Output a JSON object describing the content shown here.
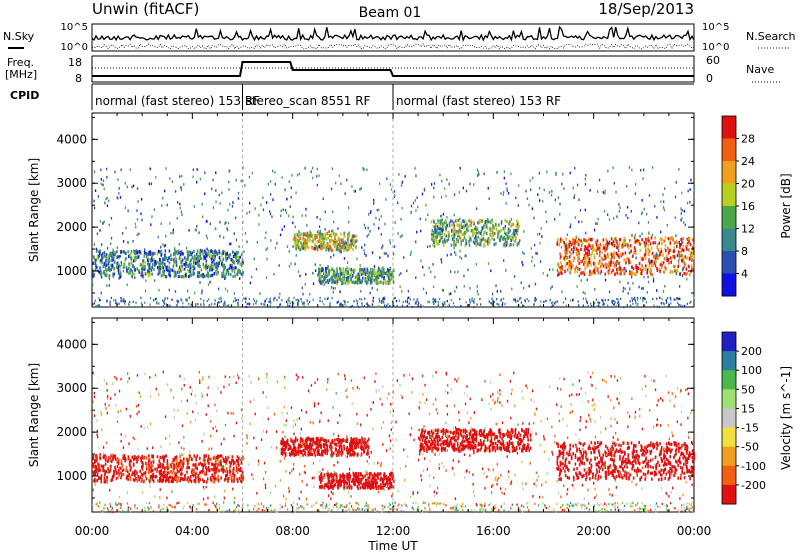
{
  "header": {
    "station": "Unwin (fitACF)",
    "beam": "Beam 01",
    "date": "18/Sep/2013"
  },
  "top_panels": {
    "nsky_label": "N.Sky",
    "nsearch_label": "N.Search",
    "nsky_ticks": [
      "10^5",
      "10^0"
    ],
    "nsearch_ticks": [
      "10^5",
      "10^0"
    ],
    "freq_label_line1": "Freq.",
    "freq_label_line2": "[MHz]",
    "freq_ticks": [
      "18",
      "8"
    ],
    "nave_label": "Nave",
    "nave_ticks": [
      "60",
      "0"
    ],
    "cpid_label": "CPID",
    "cpid_segments": [
      {
        "label": "normal (fast stereo) 153 RF",
        "start_hour": 0,
        "end_hour": 6.0
      },
      {
        "label": "stereo_scan 8551 RF",
        "start_hour": 6.0,
        "end_hour": 12.0
      },
      {
        "label": "normal (fast stereo) 153 RF",
        "start_hour": 12.0,
        "end_hour": 24.0
      }
    ]
  },
  "x_axis": {
    "label": "Time UT",
    "ticks": [
      "00:00",
      "04:00",
      "08:00",
      "12:00",
      "16:00",
      "20:00",
      "00:00"
    ]
  },
  "chart_data": [
    {
      "type": "heatmap",
      "name": "power",
      "ylabel": "Slant Range [km]",
      "xlabel": "Time UT",
      "xlim_hours": [
        0,
        24
      ],
      "ylim": [
        180,
        4600
      ],
      "yticks": [
        "1000",
        "2000",
        "3000",
        "4000"
      ],
      "colorbar_label": "Power [dB]",
      "colorbar_ticks": [
        "4",
        "8",
        "12",
        "16",
        "20",
        "24",
        "28"
      ],
      "colorbar_colors": [
        "#1010e0",
        "#2a4fb0",
        "#3a8a8a",
        "#4aa84a",
        "#b8d020",
        "#f0a020",
        "#f06010",
        "#e01010"
      ],
      "echo_regions": [
        {
          "t_start": 0.0,
          "t_end": 6.0,
          "r_low": 900,
          "r_high": 1500,
          "value": 10
        },
        {
          "t_start": 8.0,
          "t_end": 10.5,
          "r_low": 1500,
          "r_high": 1900,
          "value": 18
        },
        {
          "t_start": 9.0,
          "t_end": 12.0,
          "r_low": 750,
          "r_high": 1100,
          "value": 12
        },
        {
          "t_start": 13.5,
          "t_end": 17.0,
          "r_low": 1600,
          "r_high": 2200,
          "value": 14
        },
        {
          "t_start": 18.5,
          "t_end": 24.0,
          "r_low": 950,
          "r_high": 1800,
          "value": 26
        }
      ]
    },
    {
      "type": "heatmap",
      "name": "velocity",
      "ylabel": "Slant Range [km]",
      "xlabel": "Time UT",
      "xlim_hours": [
        0,
        24
      ],
      "ylim": [
        180,
        4600
      ],
      "yticks": [
        "1000",
        "2000",
        "3000",
        "4000"
      ],
      "colorbar_label": "Velocity [m s^-1]",
      "colorbar_ticks": [
        "200",
        "100",
        "50",
        "15",
        "-15",
        "-50",
        "-100",
        "-200"
      ],
      "colorbar_colors": [
        "#2020c0",
        "#2a7fa0",
        "#4ab84a",
        "#a0e070",
        "#c8c8c8",
        "#f0e040",
        "#f0a020",
        "#f06010",
        "#e01010"
      ],
      "echo_regions": [
        {
          "t_start": 0.0,
          "t_end": 6.0,
          "r_low": 900,
          "r_high": 1500,
          "value": -150
        },
        {
          "t_start": 7.5,
          "t_end": 11.0,
          "r_low": 1500,
          "r_high": 1900,
          "value": -200
        },
        {
          "t_start": 9.0,
          "t_end": 12.0,
          "r_low": 750,
          "r_high": 1100,
          "value": -180
        },
        {
          "t_start": 13.0,
          "t_end": 17.5,
          "r_low": 1600,
          "r_high": 2100,
          "value": -200
        },
        {
          "t_start": 18.5,
          "t_end": 24.0,
          "r_low": 950,
          "r_high": 1800,
          "value": -200
        }
      ]
    }
  ]
}
